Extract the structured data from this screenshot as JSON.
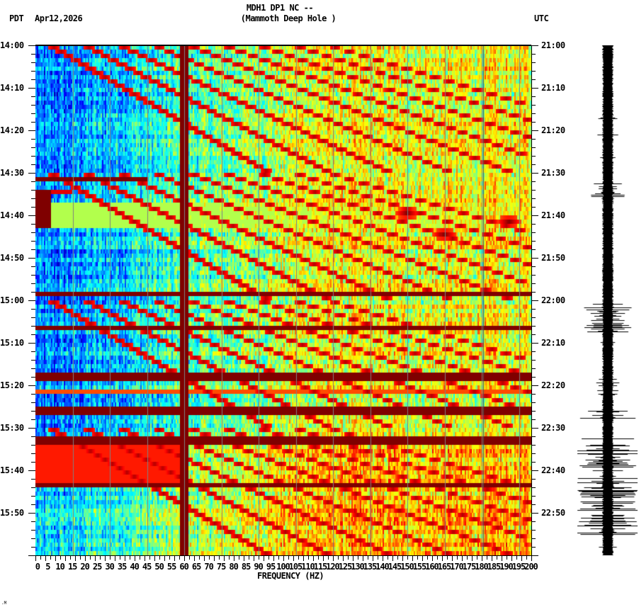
{
  "header": {
    "title_line1": "MDH1 DP1 NC --",
    "title_line2": "(Mammoth Deep Hole )",
    "left_timezone": "PDT",
    "date": "Apr12,2026",
    "right_timezone": "UTC"
  },
  "footer_mark": ".M",
  "colors": {
    "background": "#ffffff",
    "axis": "#000000",
    "gridline": "#808080",
    "colormap": [
      "#00007f",
      "#0050ff",
      "#00a0ff",
      "#00ffff",
      "#80ff80",
      "#ffff00",
      "#ff8000",
      "#ff0000",
      "#7f0000"
    ]
  },
  "chart_data": {
    "type": "heatmap",
    "title": "MDH1 DP1 NC -- (Mammoth Deep Hole )",
    "subtitle": "Apr12,2026",
    "xlabel": "FREQUENCY (HZ)",
    "ylabel_left": "PDT",
    "ylabel_right": "UTC",
    "xlim": [
      0,
      200
    ],
    "x_ticks": [
      0,
      5,
      10,
      15,
      20,
      25,
      30,
      35,
      40,
      45,
      50,
      55,
      60,
      65,
      70,
      75,
      80,
      85,
      90,
      95,
      100,
      105,
      110,
      115,
      120,
      125,
      130,
      135,
      140,
      145,
      150,
      155,
      160,
      165,
      170,
      175,
      180,
      185,
      190,
      195,
      200
    ],
    "x_minor_tick_step": 1,
    "y_ticks_left": [
      "14:00",
      "14:10",
      "14:20",
      "14:30",
      "14:40",
      "14:50",
      "15:00",
      "15:10",
      "15:20",
      "15:30",
      "15:40",
      "15:50"
    ],
    "y_ticks_right": [
      "21:00",
      "21:10",
      "21:20",
      "21:30",
      "21:40",
      "21:50",
      "22:00",
      "22:10",
      "22:20",
      "22:30",
      "22:40",
      "22:50"
    ],
    "y_minutes_span": 120,
    "y_minor_tick_step_min": 2,
    "grid": "vertical gray lines every 15 Hz",
    "persistent_lines_hz": [
      {
        "hz": 60,
        "note": "strong continuous line"
      },
      {
        "hz": 180.5,
        "note": "faint continuous line"
      }
    ],
    "broadband_bands_min": [
      {
        "start": 31.2,
        "end": 32.2,
        "hz_max": 45,
        "level": 1.0
      },
      {
        "start": 34.0,
        "end": 34.8,
        "hz_max": 15,
        "level": 0.9
      },
      {
        "start": 34.0,
        "end": 43.0,
        "hz_max": 6,
        "level": 1.0
      },
      {
        "start": 37.0,
        "end": 43.0,
        "hz_max": 200,
        "level": 0.55
      },
      {
        "start": 57.8,
        "end": 58.6,
        "hz_max": 200,
        "level": 1.0
      },
      {
        "start": 61.5,
        "end": 62.5,
        "hz_max": 200,
        "level": 1.0
      },
      {
        "start": 66.0,
        "end": 67.0,
        "hz_max": 200,
        "level": 1.0
      },
      {
        "start": 77.5,
        "end": 79.2,
        "hz_max": 200,
        "level": 1.0
      },
      {
        "start": 81.0,
        "end": 81.8,
        "hz_max": 200,
        "level": 0.8
      },
      {
        "start": 85.0,
        "end": 87.2,
        "hz_max": 200,
        "level": 1.0
      },
      {
        "start": 92.0,
        "end": 94.2,
        "hz_max": 200,
        "level": 1.0
      },
      {
        "start": 94.2,
        "end": 104.0,
        "hz_max": 60,
        "level": 0.85
      },
      {
        "start": 103.5,
        "end": 104.4,
        "hz_max": 200,
        "level": 1.0
      }
    ],
    "events": [
      {
        "min": 39.5,
        "hz": 150,
        "note": "local burst"
      },
      {
        "min": 41.5,
        "hz": 191,
        "note": "local burst"
      },
      {
        "min": 44.5,
        "hz": 165,
        "note": "local burst"
      }
    ],
    "colorscale": "jet (blue=low, dark red=high)",
    "seismogram_trace": {
      "position": "right",
      "note": "black waveform, amplitude bursts near 14:31-14:36, 15:00-15:10, 15:19-15:21, 15:25-15:27, 15:32-15:55"
    }
  }
}
